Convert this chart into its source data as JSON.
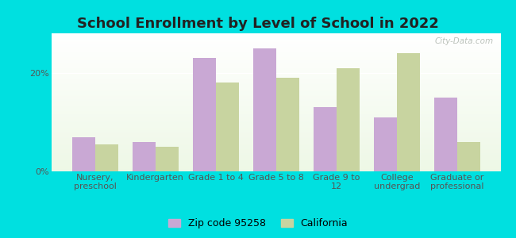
{
  "title": "School Enrollment by Level of School in 2022",
  "categories": [
    "Nursery,\npreschool",
    "Kindergarten",
    "Grade 1 to 4",
    "Grade 5 to 8",
    "Grade 9 to\n12",
    "College\nundergrad",
    "Graduate or\nprofessional"
  ],
  "zip_values": [
    7,
    6,
    23,
    25,
    13,
    11,
    15
  ],
  "ca_values": [
    5.5,
    5,
    18,
    19,
    21,
    24,
    6
  ],
  "zip_color": "#c9a8d4",
  "ca_color": "#c8d4a0",
  "background_outer": "#00e0e0",
  "title_color": "#222222",
  "tick_color": "#555555",
  "legend_zip_label": "Zip code 95258",
  "legend_ca_label": "California",
  "ylim": [
    0,
    28
  ],
  "yticks": [
    0,
    20
  ],
  "ytick_labels": [
    "0%",
    "20%"
  ],
  "bar_width": 0.38,
  "watermark_text": "City-Data.com",
  "title_fontsize": 13,
  "axis_fontsize": 8,
  "legend_fontsize": 9
}
